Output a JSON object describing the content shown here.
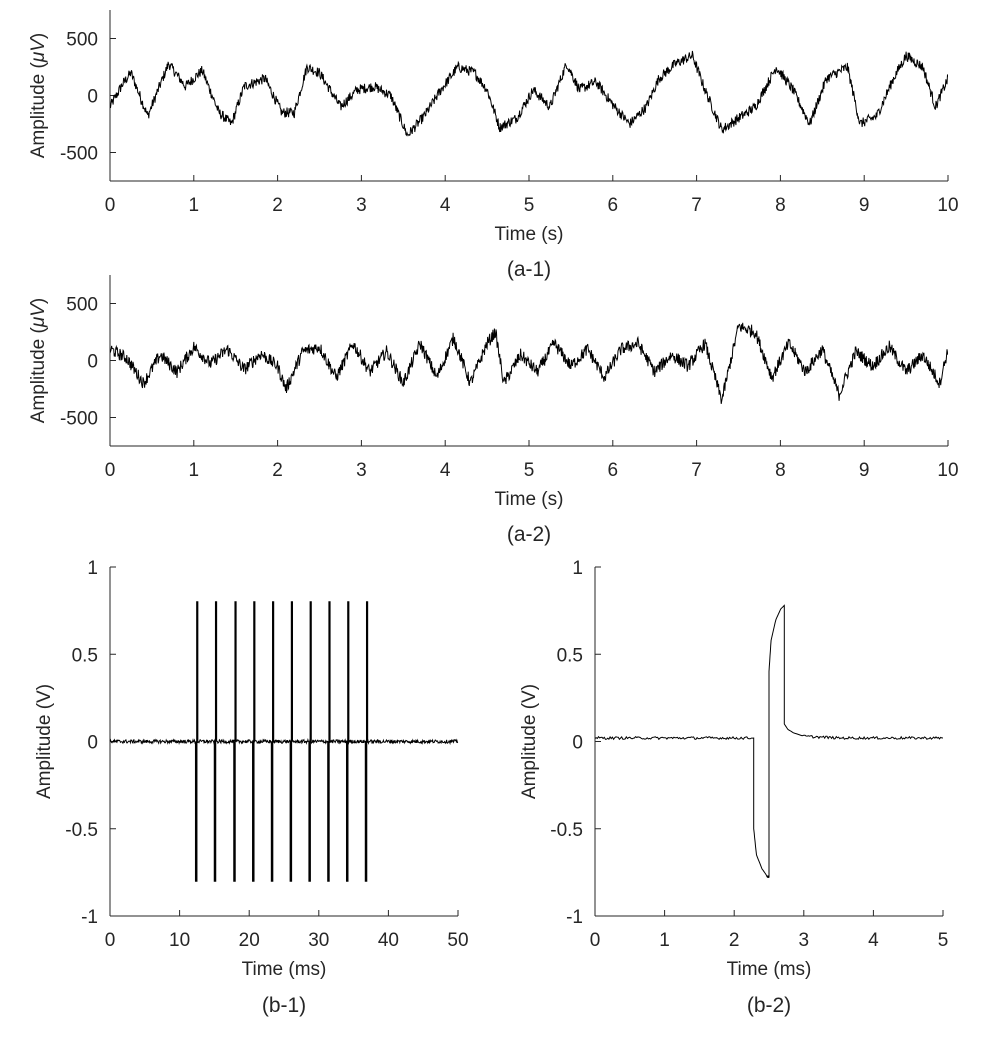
{
  "figure": {
    "background": "#ffffff",
    "axis_color": "#262626",
    "trace_color": "#000000"
  },
  "chart_data": [
    {
      "type": "line",
      "caption": "(a-1)",
      "xlabel": "Time (s)",
      "ylabel_text": "Amplitude (",
      "ylabel_symbol": "μV",
      "ylabel_close": ")",
      "xlim": [
        0,
        10
      ],
      "ylim": [
        -750,
        750
      ],
      "xticks": [
        0,
        1,
        2,
        3,
        4,
        5,
        6,
        7,
        8,
        9,
        10
      ],
      "xtick_labels": [
        "0",
        "1",
        "2",
        "3",
        "4",
        "5",
        "6",
        "7",
        "8",
        "9",
        "10"
      ],
      "yticks": [
        500,
        0,
        -500
      ],
      "ytick_labels": [
        "500",
        "0",
        "-500"
      ],
      "grid": false,
      "series": [
        {
          "x": [
            0,
            0.15,
            0.25,
            0.45,
            0.7,
            0.9,
            1.1,
            1.3,
            1.45,
            1.6,
            1.85,
            2.05,
            2.2,
            2.35,
            2.5,
            2.75,
            2.95,
            3.15,
            3.35,
            3.55,
            3.75,
            3.95,
            4.15,
            4.35,
            4.5,
            4.65,
            4.85,
            5.05,
            5.25,
            5.45,
            5.6,
            5.8,
            6.0,
            6.2,
            6.4,
            6.55,
            6.75,
            6.95,
            7.1,
            7.3,
            7.5,
            7.7,
            7.95,
            8.15,
            8.35,
            8.55,
            8.8,
            8.95,
            9.15,
            9.35,
            9.5,
            9.7,
            9.85,
            10
          ],
          "y": [
            -100,
            100,
            200,
            -180,
            280,
            80,
            220,
            -150,
            -250,
            80,
            150,
            -150,
            -150,
            250,
            200,
            -100,
            50,
            80,
            0,
            -350,
            -180,
            50,
            250,
            200,
            50,
            -280,
            -200,
            50,
            -100,
            280,
            50,
            120,
            -80,
            -250,
            -100,
            150,
            280,
            350,
            50,
            -300,
            -200,
            -100,
            250,
            50,
            -250,
            150,
            250,
            -250,
            -180,
            150,
            350,
            250,
            -100,
            150
          ]
        }
      ]
    },
    {
      "type": "line",
      "caption": "(a-2)",
      "xlabel": "Time (s)",
      "ylabel_text": "Amplitude (",
      "ylabel_symbol": "μV",
      "ylabel_close": ")",
      "xlim": [
        0,
        10
      ],
      "ylim": [
        -750,
        750
      ],
      "xticks": [
        0,
        1,
        2,
        3,
        4,
        5,
        6,
        7,
        8,
        9,
        10
      ],
      "xtick_labels": [
        "0",
        "1",
        "2",
        "3",
        "4",
        "5",
        "6",
        "7",
        "8",
        "9",
        "10"
      ],
      "yticks": [
        500,
        0,
        -500
      ],
      "ytick_labels": [
        "500",
        "0",
        "-500"
      ],
      "grid": false,
      "series": [
        {
          "x": [
            0,
            0.2,
            0.4,
            0.6,
            0.8,
            1.0,
            1.2,
            1.4,
            1.6,
            1.8,
            2.0,
            2.1,
            2.3,
            2.5,
            2.7,
            2.9,
            3.1,
            3.3,
            3.5,
            3.7,
            3.9,
            4.1,
            4.3,
            4.5,
            4.6,
            4.7,
            4.9,
            5.1,
            5.3,
            5.5,
            5.7,
            5.9,
            6.1,
            6.3,
            6.5,
            6.7,
            6.9,
            7.1,
            7.3,
            7.5,
            7.7,
            7.9,
            8.1,
            8.3,
            8.5,
            8.7,
            8.9,
            9.1,
            9.3,
            9.5,
            9.7,
            9.9,
            10
          ],
          "y": [
            100,
            20,
            -200,
            50,
            -100,
            120,
            -30,
            100,
            -80,
            60,
            -50,
            -250,
            80,
            120,
            -150,
            150,
            -100,
            80,
            -200,
            150,
            -150,
            200,
            -200,
            150,
            250,
            -200,
            50,
            -100,
            150,
            -50,
            100,
            -150,
            100,
            150,
            -100,
            50,
            -50,
            150,
            -350,
            300,
            250,
            -150,
            150,
            -100,
            100,
            -300,
            80,
            -50,
            120,
            -100,
            50,
            -200,
            100
          ]
        }
      ]
    },
    {
      "type": "line",
      "caption": "(b-1)",
      "xlabel": "Time (ms)",
      "ylabel_text": "Amplitude (V)",
      "xlim": [
        0,
        50
      ],
      "ylim": [
        -1,
        1
      ],
      "xticks": [
        0,
        10,
        20,
        30,
        40,
        50
      ],
      "xtick_labels": [
        "0",
        "10",
        "20",
        "30",
        "40",
        "50"
      ],
      "yticks": [
        1,
        0.5,
        0,
        -0.5,
        -1
      ],
      "ytick_labels": [
        "1",
        "0.5",
        "0",
        "-0.5",
        "-1"
      ],
      "grid": false,
      "baseline": 0,
      "pulses": [
        {
          "x": 12.3,
          "high": 0.8,
          "low": -0.8
        },
        {
          "x": 15.0,
          "high": 0.8,
          "low": -0.8
        },
        {
          "x": 17.8,
          "high": 0.8,
          "low": -0.8
        },
        {
          "x": 20.5,
          "high": 0.8,
          "low": -0.8
        },
        {
          "x": 23.2,
          "high": 0.8,
          "low": -0.8
        },
        {
          "x": 25.9,
          "high": 0.8,
          "low": -0.8
        },
        {
          "x": 28.6,
          "high": 0.8,
          "low": -0.8
        },
        {
          "x": 31.3,
          "high": 0.8,
          "low": -0.8
        },
        {
          "x": 34.0,
          "high": 0.8,
          "low": -0.8
        },
        {
          "x": 36.7,
          "high": 0.8,
          "low": -0.8
        }
      ]
    },
    {
      "type": "line",
      "caption": "(b-2)",
      "xlabel": "Time (ms)",
      "ylabel_text": "Amplitude (V)",
      "xlim": [
        0,
        5
      ],
      "ylim": [
        -1,
        1
      ],
      "xticks": [
        0,
        1,
        2,
        3,
        4,
        5
      ],
      "xtick_labels": [
        "0",
        "1",
        "2",
        "3",
        "4",
        "5"
      ],
      "yticks": [
        1,
        0.5,
        0,
        -0.5,
        -1
      ],
      "ytick_labels": [
        "1",
        "0.5",
        "0",
        "-0.5",
        "-1"
      ],
      "grid": false,
      "series": [
        {
          "x": [
            0,
            1,
            2,
            2.28,
            2.28,
            2.32,
            2.4,
            2.47,
            2.5,
            2.5,
            2.53,
            2.6,
            2.67,
            2.72,
            2.72,
            2.77,
            2.85,
            3,
            3.5,
            4,
            5
          ],
          "y": [
            0.02,
            0.02,
            0.02,
            0.02,
            -0.5,
            -0.65,
            -0.73,
            -0.77,
            -0.78,
            0.4,
            0.58,
            0.7,
            0.76,
            0.78,
            0.1,
            0.07,
            0.05,
            0.03,
            0.02,
            0.02,
            0.02
          ]
        }
      ]
    }
  ]
}
